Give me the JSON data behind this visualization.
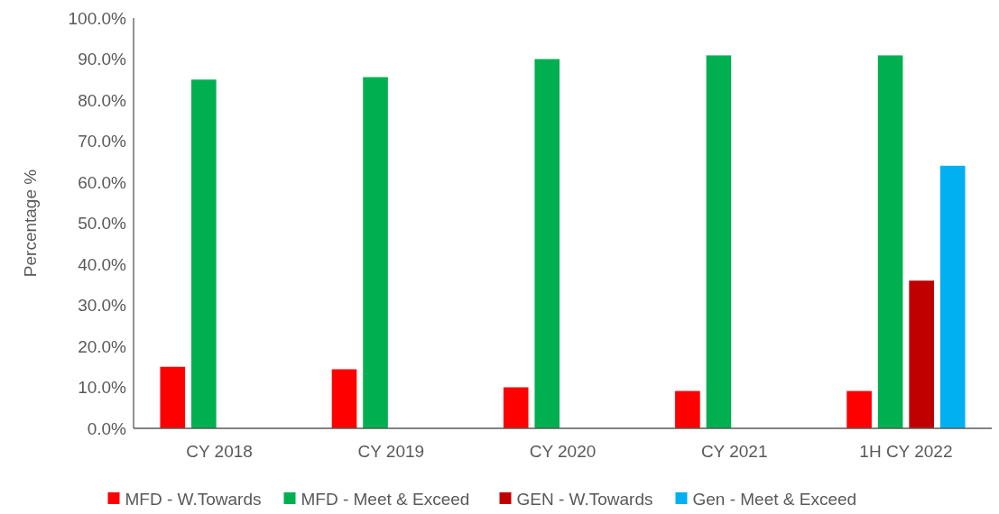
{
  "chart_data": {
    "type": "bar",
    "ylabel": "Percentage %",
    "categories": [
      "CY 2018",
      "CY 2019",
      "CY 2020",
      "CY 2021",
      "1H CY 2022"
    ],
    "series": [
      {
        "name": "MFD - W.Towards",
        "color": "#ff0000",
        "values": [
          15.0,
          14.4,
          10.0,
          9.1,
          9.1
        ]
      },
      {
        "name": "MFD - Meet & Exceed",
        "color": "#00b050",
        "values": [
          85.0,
          85.6,
          90.0,
          90.9,
          90.9
        ]
      },
      {
        "name": "GEN - W.Towards",
        "color": "#c00000",
        "values": [
          null,
          null,
          null,
          null,
          36.0
        ]
      },
      {
        "name": "Gen - Meet & Exceed",
        "color": "#00b0f0",
        "values": [
          null,
          null,
          null,
          null,
          64.0
        ]
      }
    ],
    "ylim": [
      0,
      100
    ],
    "yticks": [
      {
        "value": 0,
        "label": "0.0%"
      },
      {
        "value": 10,
        "label": "10.0%"
      },
      {
        "value": 20,
        "label": "20.0%"
      },
      {
        "value": 30,
        "label": "30.0%"
      },
      {
        "value": 40,
        "label": "40.0%"
      },
      {
        "value": 50,
        "label": "50.0%"
      },
      {
        "value": 60,
        "label": "60.0%"
      },
      {
        "value": 70,
        "label": "70.0%"
      },
      {
        "value": 80,
        "label": "80.0%"
      },
      {
        "value": 90,
        "label": "90.0%"
      },
      {
        "value": 100,
        "label": "100.0%"
      }
    ],
    "grid": false,
    "legend": "bottom"
  }
}
